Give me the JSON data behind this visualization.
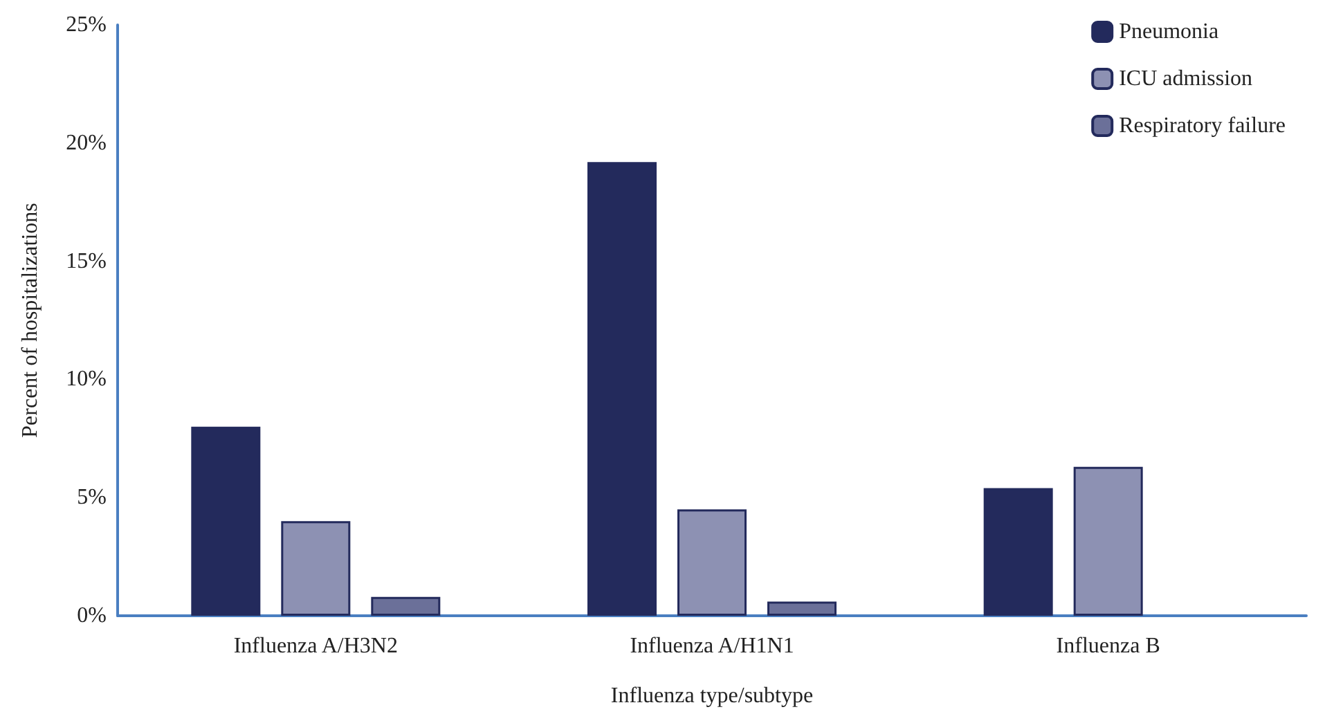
{
  "chart_data": {
    "type": "bar",
    "xlabel": "Influenza type/subtype",
    "ylabel": "Percent of hospitalizations",
    "categories": [
      "Influenza A/H3N2",
      "Influenza A/H1N1",
      "Influenza B"
    ],
    "series": [
      {
        "name": "Pneumonia",
        "color": "#232a5c",
        "values": [
          8.0,
          19.2,
          5.4
        ]
      },
      {
        "name": "ICU admission",
        "color": "#8d91b3",
        "values": [
          4.0,
          4.5,
          6.3
        ]
      },
      {
        "name": "Respiratory failure",
        "color": "#6b7099",
        "values": [
          0.8,
          0.6,
          null
        ]
      }
    ],
    "ylim": [
      0,
      25
    ],
    "yticks": [
      {
        "value": 0,
        "label": "0%"
      },
      {
        "value": 5,
        "label": "5%"
      },
      {
        "value": 10,
        "label": "10%"
      },
      {
        "value": 15,
        "label": "15%"
      },
      {
        "value": 20,
        "label": "20%"
      },
      {
        "value": 25,
        "label": "25%"
      }
    ],
    "grid": false,
    "legend": "top right"
  }
}
